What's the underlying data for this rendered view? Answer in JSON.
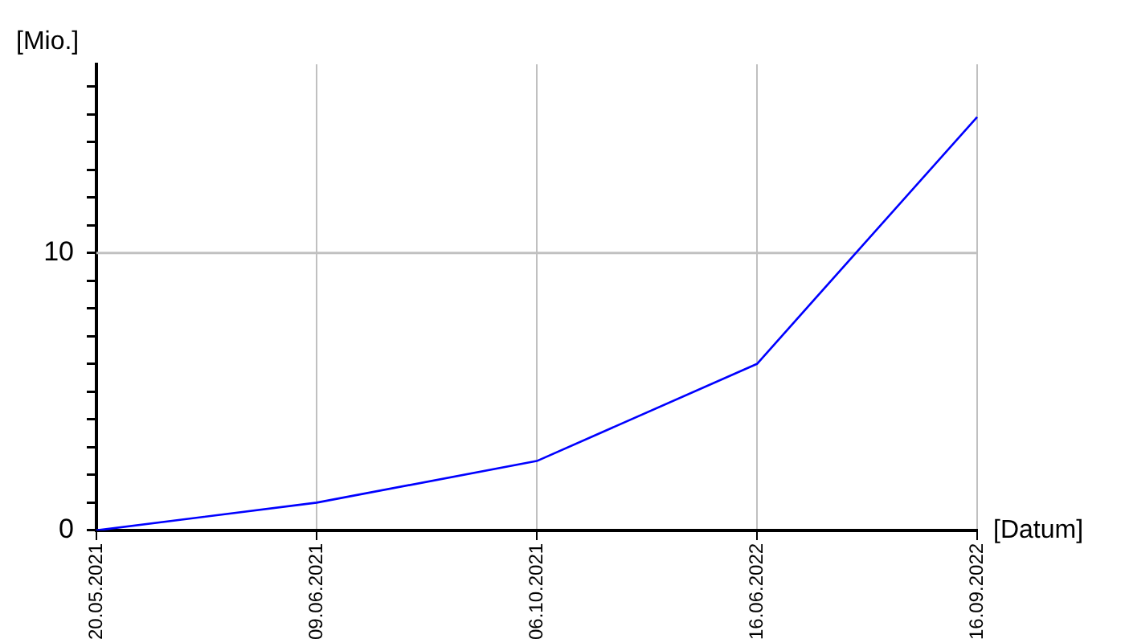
{
  "chart_data": {
    "type": "line",
    "xlabel": "[Datum]",
    "ylabel": "[Mio.]",
    "categories": [
      "20.05.2021",
      "09.06.2021",
      "06.10.2021",
      "16.06.2022",
      "16.09.2022"
    ],
    "series": [
      {
        "color": "#0000ff",
        "values": [
          0,
          1.0,
          2.5,
          6.0,
          14.9
        ]
      }
    ],
    "ylim": [
      0,
      16.8
    ],
    "yticks": [
      0,
      {
        "value": 1,
        "label": null
      },
      {
        "value": 2,
        "label": null
      },
      {
        "value": 3,
        "label": null
      },
      {
        "value": 4,
        "label": null
      },
      {
        "value": 5,
        "label": null
      },
      {
        "value": 6,
        "label": null
      },
      {
        "value": 7,
        "label": null
      },
      {
        "value": 8,
        "label": null
      },
      {
        "value": 9,
        "label": null
      },
      10,
      {
        "value": 11,
        "label": null
      },
      {
        "value": 12,
        "label": null
      },
      {
        "value": 13,
        "label": null
      },
      {
        "value": 14,
        "label": null
      },
      {
        "value": 15,
        "label": null
      },
      {
        "value": 16,
        "label": null
      }
    ],
    "ref_lines": [
      {
        "axis": "y",
        "value": 10,
        "color": "#c0c0c0"
      }
    ],
    "grid": "x",
    "legend": false,
    "marker": "none",
    "line_style": "solid"
  }
}
